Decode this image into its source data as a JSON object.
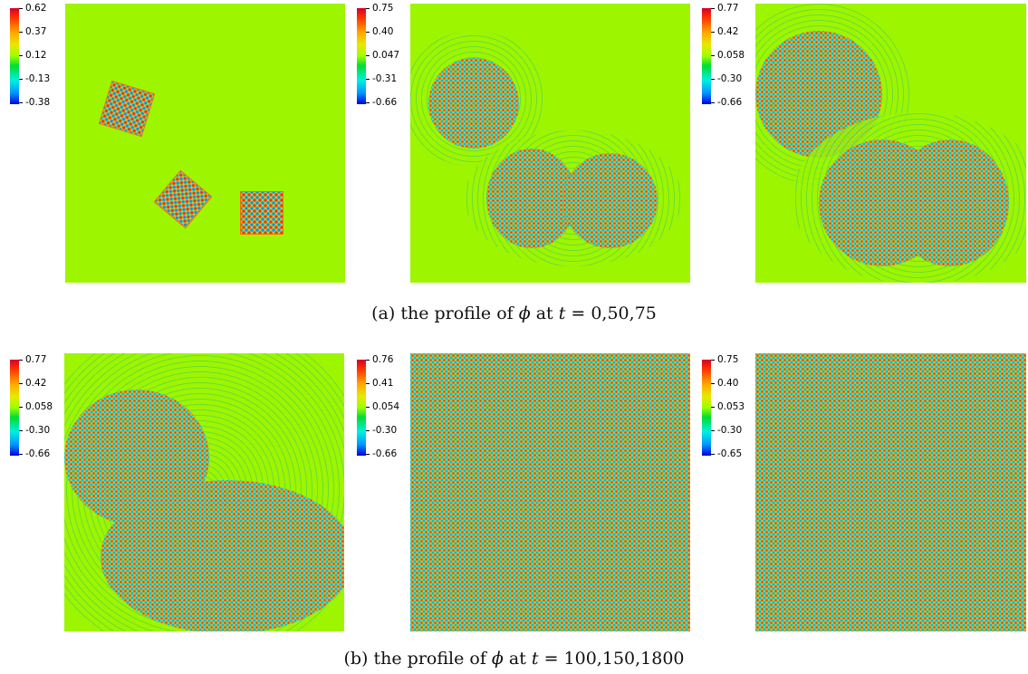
{
  "panels": [
    {
      "ticks": [
        "0.62",
        "0.37",
        "0.12",
        "-0.13",
        "-0.38"
      ]
    },
    {
      "ticks": [
        "0.75",
        "0.40",
        "0.047",
        "-0.31",
        "-0.66"
      ]
    },
    {
      "ticks": [
        "0.77",
        "0.42",
        "0.058",
        "-0.30",
        "-0.66"
      ]
    },
    {
      "ticks": [
        "0.77",
        "0.42",
        "0.058",
        "-0.30",
        "-0.66"
      ]
    },
    {
      "ticks": [
        "0.76",
        "0.41",
        "0.054",
        "-0.30",
        "-0.66"
      ]
    },
    {
      "ticks": [
        "0.75",
        "0.40",
        "0.053",
        "-0.30",
        "-0.65"
      ]
    }
  ],
  "captions": {
    "a": {
      "prefix": "(a)  the profile of ",
      "var": "ϕ",
      "mid": " at ",
      "tvar": "t",
      "eq": " = ",
      "values": "0,50,75"
    },
    "b": {
      "prefix": "(b)  the profile of ",
      "var": "ϕ",
      "mid": " at ",
      "tvar": "t",
      "eq": " = ",
      "values": "100,150,1800"
    }
  }
}
